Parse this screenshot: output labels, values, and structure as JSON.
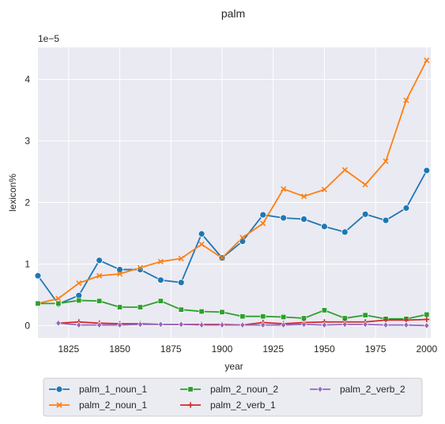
{
  "chart_data": {
    "type": "line",
    "title": "palm",
    "xlabel": "year",
    "ylabel": "lexicon%",
    "y_scale_label": "1e−5",
    "xlim": [
      1810,
      2002
    ],
    "ylim": [
      -0.2,
      4.52
    ],
    "x_ticks": [
      1825,
      1850,
      1875,
      1900,
      1925,
      1950,
      1975,
      2000
    ],
    "y_ticks": [
      0,
      1,
      2,
      3,
      4
    ],
    "grid": true,
    "legend_position": "bottom-center",
    "x": [
      1810,
      1820,
      1830,
      1840,
      1850,
      1860,
      1870,
      1880,
      1890,
      1900,
      1910,
      1920,
      1930,
      1940,
      1950,
      1960,
      1970,
      1980,
      1990,
      2000
    ],
    "series": [
      {
        "name": "palm_1_noun_1",
        "color": "#1f77b4",
        "marker": "circle",
        "values": [
          0.81,
          0.35,
          0.49,
          1.06,
          0.91,
          0.91,
          0.74,
          0.7,
          1.49,
          1.1,
          1.37,
          1.8,
          1.75,
          1.73,
          1.61,
          1.52,
          1.81,
          1.71,
          1.91,
          2.52
        ]
      },
      {
        "name": "palm_2_noun_1",
        "color": "#ff7f0e",
        "marker": "x",
        "values": [
          0.36,
          0.44,
          0.69,
          0.81,
          0.84,
          0.94,
          1.04,
          1.09,
          1.32,
          1.1,
          1.43,
          1.66,
          2.22,
          2.1,
          2.21,
          2.53,
          2.29,
          2.67,
          3.66,
          4.31
        ]
      },
      {
        "name": "palm_2_noun_2",
        "color": "#2ca02c",
        "marker": "square",
        "values": [
          0.36,
          0.36,
          0.41,
          0.4,
          0.3,
          0.3,
          0.4,
          0.26,
          0.23,
          0.22,
          0.15,
          0.15,
          0.14,
          0.12,
          0.25,
          0.12,
          0.17,
          0.11,
          0.11,
          0.18
        ]
      },
      {
        "name": "palm_2_verb_1",
        "color": "#d62728",
        "marker": "plus",
        "values": [
          null,
          0.04,
          0.06,
          0.04,
          0.03,
          0.03,
          0.02,
          0.02,
          0.02,
          0.02,
          0.01,
          0.05,
          0.03,
          0.05,
          0.06,
          0.06,
          0.06,
          0.09,
          0.09,
          0.1
        ]
      },
      {
        "name": "palm_2_verb_2",
        "color": "#9467bd",
        "marker": "diamond",
        "values": [
          null,
          0.04,
          0.01,
          0.01,
          0.01,
          0.02,
          0.02,
          0.02,
          0.01,
          0.01,
          0.01,
          0.01,
          0.01,
          0.02,
          0.01,
          0.02,
          0.02,
          0.01,
          0.01,
          0.0
        ]
      }
    ]
  }
}
